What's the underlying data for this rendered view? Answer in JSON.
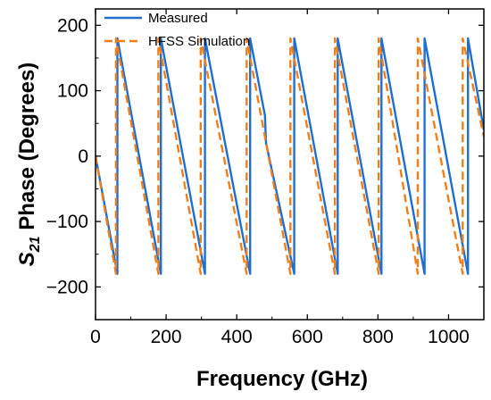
{
  "chart_data": {
    "type": "line",
    "title": "",
    "xlabel": "Frequency (GHz)",
    "ylabel_prefix": "S",
    "ylabel_subscript": "21",
    "ylabel_suffix": "Phase (Degrees)",
    "xlim": [
      0,
      1100
    ],
    "ylim": [
      -250,
      225
    ],
    "x_ticks": [
      0,
      200,
      400,
      600,
      800,
      1000
    ],
    "y_ticks": [
      -200,
      -100,
      0,
      100,
      200
    ],
    "x_tick_labels": [
      "0",
      "200",
      "400",
      "600",
      "800",
      "1000"
    ],
    "y_tick_labels": [
      "−200",
      "−100",
      "0",
      "100",
      "200"
    ],
    "grid": false,
    "legend_position": "top-left",
    "series": [
      {
        "name": "Measured",
        "color": "#1f6fd1",
        "dash": "solid",
        "points": [
          [
            0,
            0
          ],
          [
            62,
            -180
          ],
          [
            62,
            180
          ],
          [
            185,
            -180
          ],
          [
            185,
            180
          ],
          [
            310,
            -180
          ],
          [
            310,
            180
          ],
          [
            438,
            -180
          ],
          [
            438,
            180
          ],
          [
            480,
            62
          ],
          [
            483,
            20
          ],
          [
            563,
            -180
          ],
          [
            563,
            180
          ],
          [
            686,
            -180
          ],
          [
            686,
            180
          ],
          [
            810,
            -180
          ],
          [
            810,
            180
          ],
          [
            932,
            -180
          ],
          [
            932,
            180
          ],
          [
            1055,
            -180
          ],
          [
            1055,
            180
          ],
          [
            1100,
            40
          ]
        ]
      },
      {
        "name": "HFSS Simulation",
        "color": "#f07f1a",
        "dash": "dashed",
        "points": [
          [
            0,
            0
          ],
          [
            58,
            -180
          ],
          [
            58,
            180
          ],
          [
            178,
            -180
          ],
          [
            178,
            180
          ],
          [
            298,
            -180
          ],
          [
            298,
            180
          ],
          [
            428,
            -180
          ],
          [
            428,
            180
          ],
          [
            552,
            -180
          ],
          [
            552,
            180
          ],
          [
            678,
            -180
          ],
          [
            678,
            180
          ],
          [
            802,
            -180
          ],
          [
            802,
            180
          ],
          [
            913,
            -180
          ],
          [
            913,
            180
          ],
          [
            1040,
            -180
          ],
          [
            1040,
            180
          ],
          [
            1100,
            30
          ]
        ]
      }
    ]
  }
}
